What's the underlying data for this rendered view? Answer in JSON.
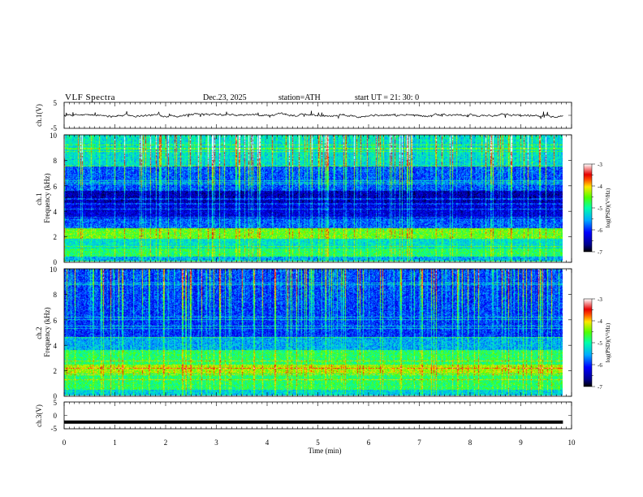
{
  "header": {
    "title": "VLF  Spectra",
    "date": "Dec.23, 2025",
    "station": "station=ATH",
    "start": "start  UT  =    21: 30: 0"
  },
  "chart_data": [
    {
      "type": "line",
      "panel": "ch1-waveform",
      "ylabel": "ch.1(V)",
      "ylim": [
        -5,
        5
      ],
      "ytick_labels": [
        "5",
        "-5"
      ],
      "xlim": [
        0,
        10
      ],
      "x_data_end": 9.83,
      "baseline": 0,
      "approx_amplitude": 0.6,
      "color": "#000000"
    },
    {
      "type": "heatmap",
      "panel": "ch1-spectrogram",
      "ylabel": "ch.1\nFrequency (kHz)",
      "ylim": [
        0,
        10
      ],
      "ytick_labels": [
        "0",
        "2",
        "4",
        "6",
        "8",
        "10"
      ],
      "xlim": [
        0,
        10
      ],
      "x_data_end": 9.83,
      "colorbar": {
        "label": "log(PSD)(V²/Hz)",
        "range": [
          -7,
          -3
        ],
        "tick_labels": [
          "-3",
          "-4",
          "-5",
          "-6",
          "-7"
        ]
      },
      "bands_khz": [
        {
          "f_from": 0.0,
          "f_to": 0.35,
          "level": -5.6
        },
        {
          "f_from": 0.35,
          "f_to": 1.0,
          "level": -4.9
        },
        {
          "f_from": 1.0,
          "f_to": 1.8,
          "level": -5.3
        },
        {
          "f_from": 1.8,
          "f_to": 2.6,
          "level": -4.6
        },
        {
          "f_from": 2.6,
          "f_to": 3.4,
          "level": -5.9
        },
        {
          "f_from": 3.4,
          "f_to": 4.5,
          "level": -6.4
        },
        {
          "f_from": 4.5,
          "f_to": 5.6,
          "level": -6.6
        },
        {
          "f_from": 5.6,
          "f_to": 7.5,
          "level": -6.0
        },
        {
          "f_from": 7.5,
          "f_to": 10.0,
          "level": -5.4
        }
      ]
    },
    {
      "type": "heatmap",
      "panel": "ch2-spectrogram",
      "ylabel": "ch.2\nFrequency (kHz)",
      "ylim": [
        0,
        10
      ],
      "ytick_labels": [
        "0",
        "2",
        "4",
        "6",
        "8",
        "10"
      ],
      "xlim": [
        0,
        10
      ],
      "x_data_end": 9.83,
      "colorbar": {
        "label": "log(PSD)(V²/Hz)",
        "range": [
          -7,
          -3
        ],
        "tick_labels": [
          "-3",
          "-4",
          "-5",
          "-6",
          "-7"
        ]
      },
      "bands_khz": [
        {
          "f_from": 0.0,
          "f_to": 0.4,
          "level": -5.4
        },
        {
          "f_from": 0.4,
          "f_to": 1.8,
          "level": -4.9
        },
        {
          "f_from": 1.8,
          "f_to": 2.4,
          "level": -4.4
        },
        {
          "f_from": 2.4,
          "f_to": 3.6,
          "level": -4.9
        },
        {
          "f_from": 3.6,
          "f_to": 4.6,
          "level": -5.6
        },
        {
          "f_from": 4.6,
          "f_to": 6.0,
          "level": -6.1
        },
        {
          "f_from": 6.0,
          "f_to": 10.0,
          "level": -6.1
        }
      ]
    },
    {
      "type": "line",
      "panel": "ch3-waveform",
      "ylabel": "ch.3(V)",
      "ylim": [
        -5,
        5
      ],
      "ytick_labels": [
        "5",
        "0",
        "-5"
      ],
      "xlim": [
        0,
        10
      ],
      "x_data_end": 9.83,
      "baseline": -2.5,
      "color": "#000000",
      "xlabel": "Time  (min)",
      "xtick_labels": [
        "0",
        "1",
        "2",
        "3",
        "4",
        "5",
        "6",
        "7",
        "8",
        "9",
        "10"
      ]
    }
  ],
  "colors": {
    "colormap": [
      "#000000",
      "#00008c",
      "#0000ff",
      "#0078ff",
      "#00e6ff",
      "#32ff64",
      "#c8ff00",
      "#ffc800",
      "#ff1400",
      "#ffffff"
    ]
  }
}
